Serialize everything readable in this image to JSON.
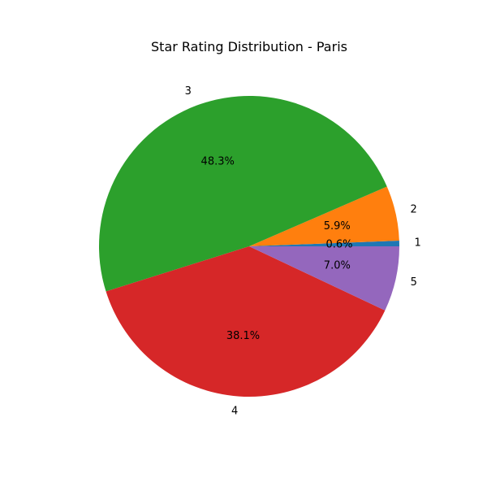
{
  "chart_data": {
    "type": "pie",
    "title": "Star Rating Distribution - Paris",
    "slices": [
      {
        "label": "1",
        "value": 0.6,
        "pct_text": "0.6%",
        "color": "#1f77b4"
      },
      {
        "label": "2",
        "value": 5.9,
        "pct_text": "5.9%",
        "color": "#ff7f0e"
      },
      {
        "label": "3",
        "value": 48.3,
        "pct_text": "48.3%",
        "color": "#2ca02c"
      },
      {
        "label": "4",
        "value": 38.1,
        "pct_text": "38.1%",
        "color": "#d62728"
      },
      {
        "label": "5",
        "value": 7.0,
        "pct_text": "7.0%",
        "color": "#9467bd"
      }
    ],
    "start_angle_deg": 0,
    "direction": "counterclockwise",
    "legend": "none"
  }
}
